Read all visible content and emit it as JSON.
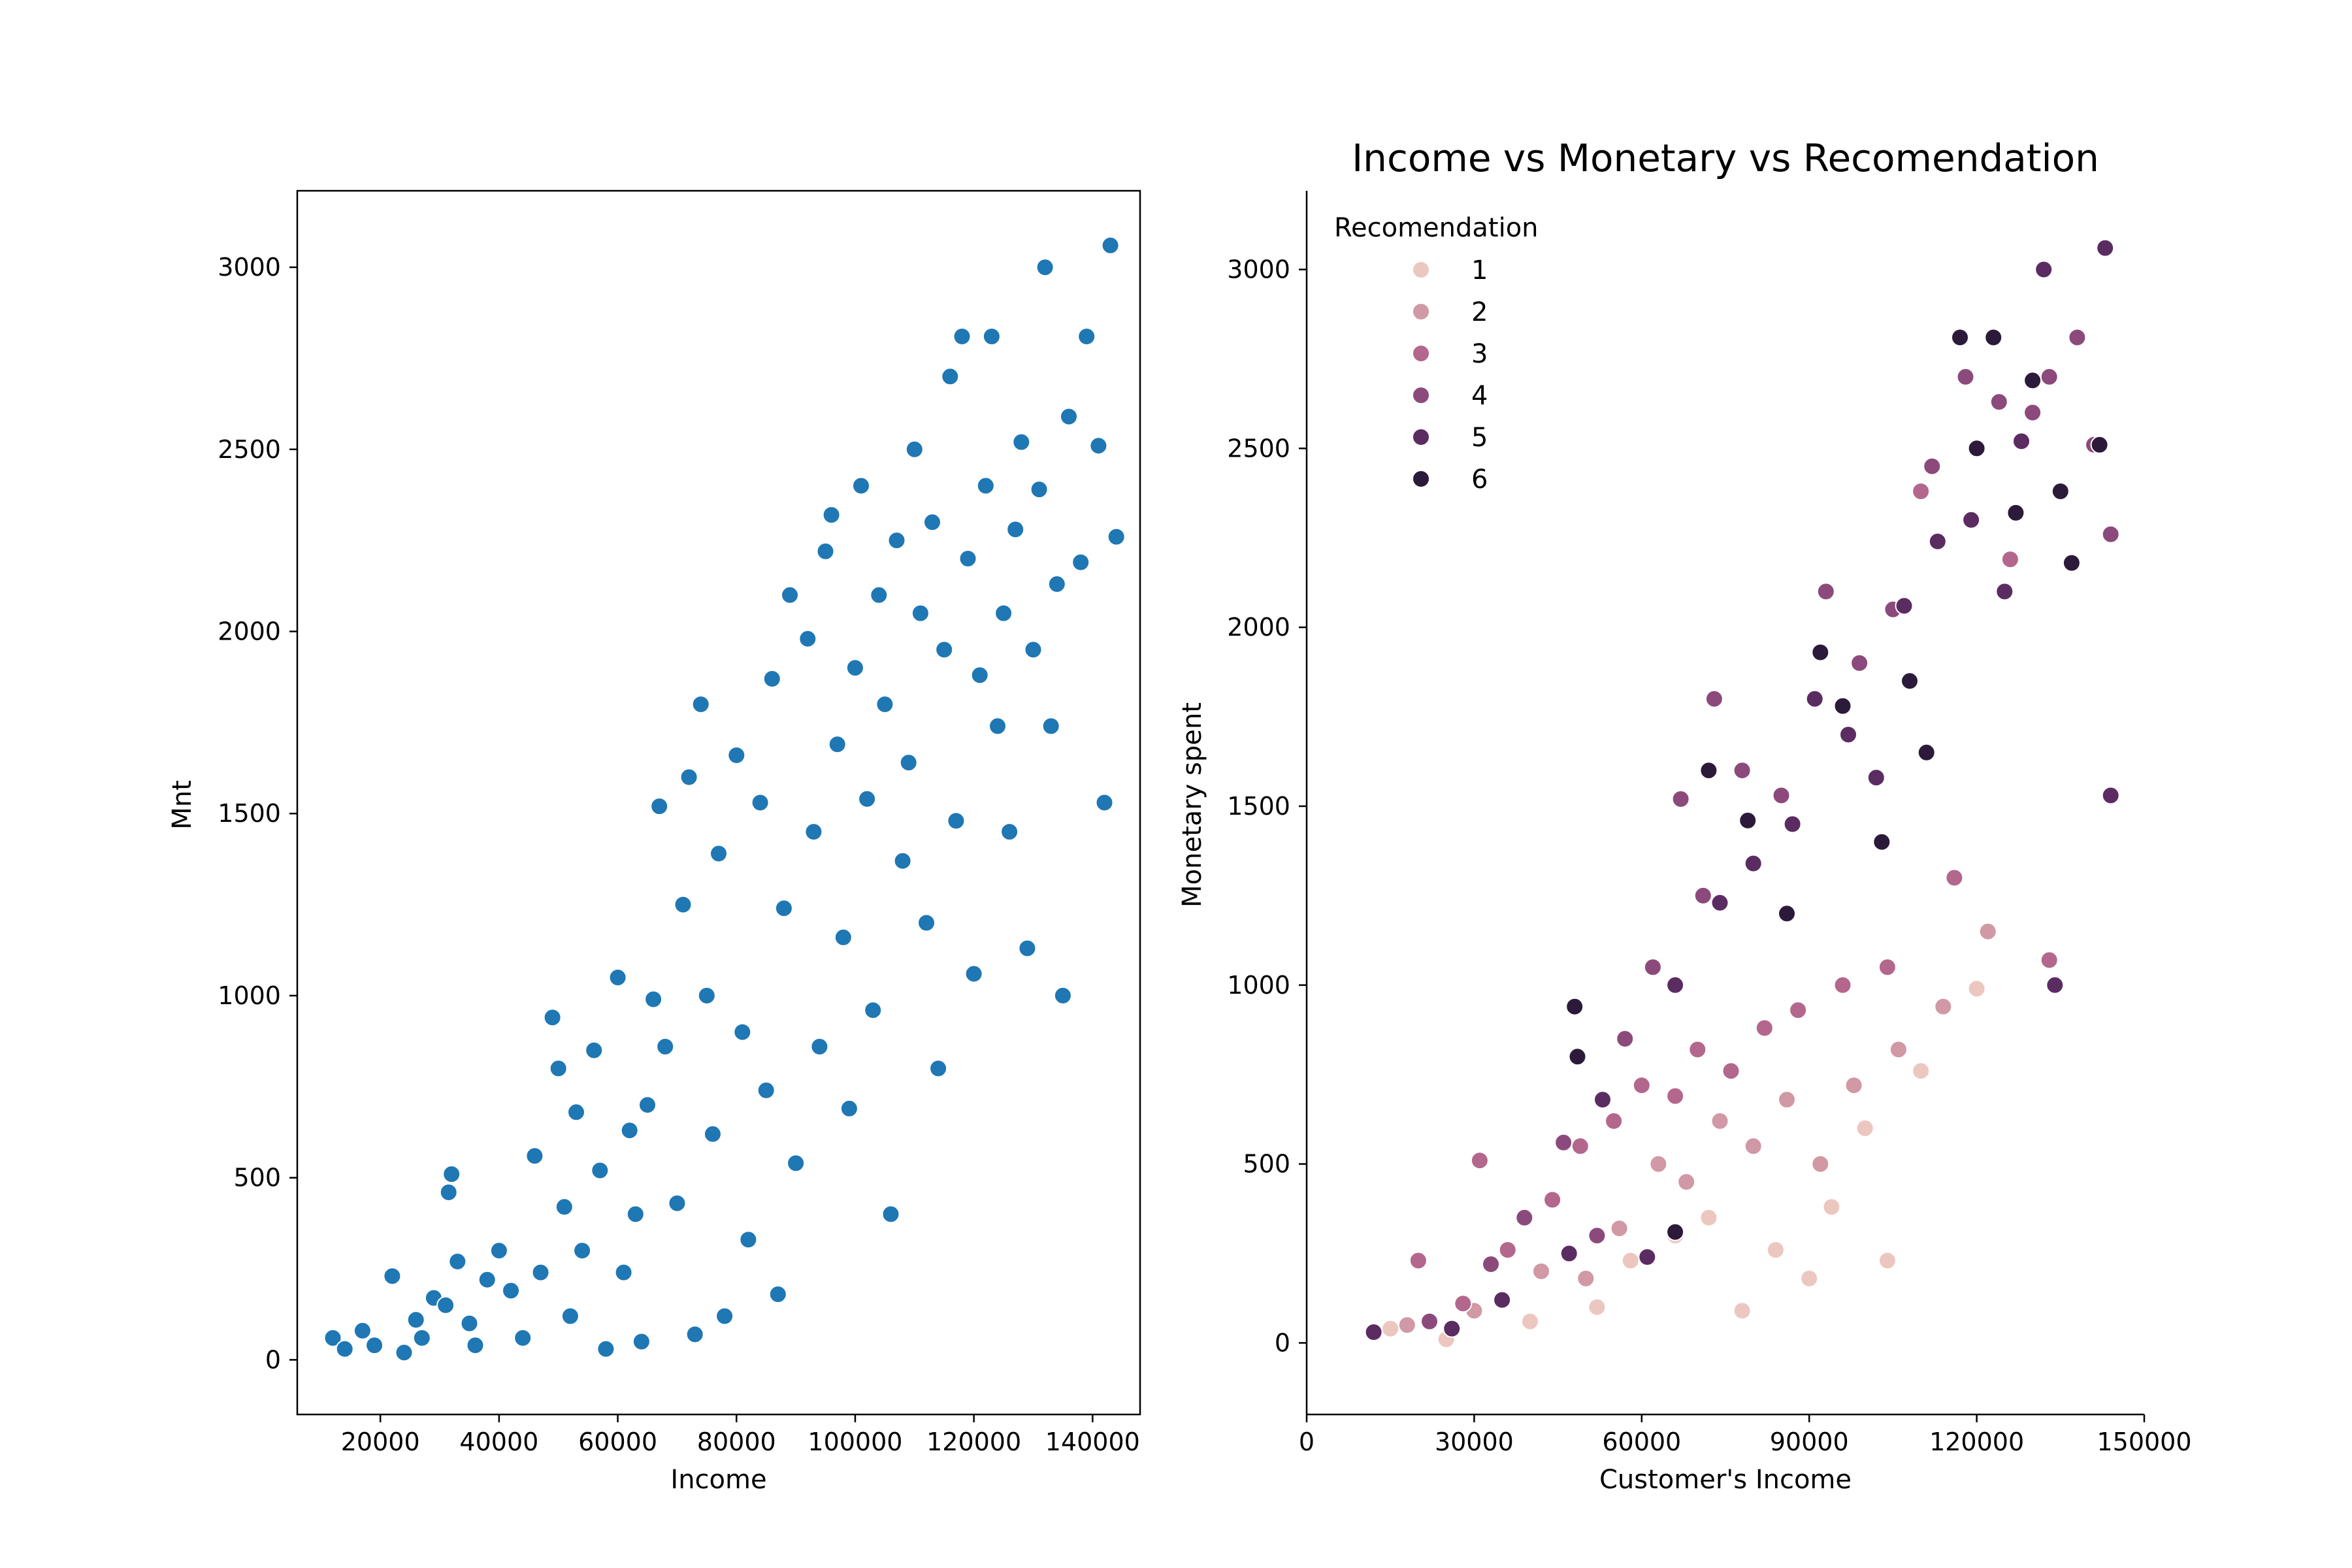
{
  "chart_data": [
    {
      "type": "scatter",
      "title": "",
      "xlabel": "Income",
      "ylabel": "Mnt",
      "xlim": [
        6000,
        148000
      ],
      "ylim": [
        -150,
        3210
      ],
      "xticks": [
        20000,
        40000,
        60000,
        80000,
        100000,
        120000,
        140000
      ],
      "yticks": [
        0,
        500,
        1000,
        1500,
        2000,
        2500,
        3000
      ],
      "grid": false,
      "color": "#1f77b4",
      "series": [
        {
          "points": [
            [
              12000,
              60
            ],
            [
              14000,
              30
            ],
            [
              17000,
              80
            ],
            [
              19000,
              40
            ],
            [
              22000,
              230
            ],
            [
              24000,
              20
            ],
            [
              26000,
              110
            ],
            [
              27000,
              60
            ],
            [
              29000,
              170
            ],
            [
              31000,
              150
            ],
            [
              32000,
              510
            ],
            [
              31500,
              460
            ],
            [
              33000,
              270
            ],
            [
              35000,
              100
            ],
            [
              36000,
              40
            ],
            [
              38000,
              220
            ],
            [
              40000,
              300
            ],
            [
              42000,
              190
            ],
            [
              44000,
              60
            ],
            [
              46000,
              560
            ],
            [
              47000,
              240
            ],
            [
              49000,
              940
            ],
            [
              50000,
              800
            ],
            [
              51000,
              420
            ],
            [
              52000,
              120
            ],
            [
              53000,
              680
            ],
            [
              54000,
              300
            ],
            [
              56000,
              850
            ],
            [
              57000,
              520
            ],
            [
              58000,
              30
            ],
            [
              60000,
              1050
            ],
            [
              61000,
              240
            ],
            [
              62000,
              630
            ],
            [
              63000,
              400
            ],
            [
              64000,
              50
            ],
            [
              65000,
              700
            ],
            [
              66000,
              990
            ],
            [
              67000,
              1520
            ],
            [
              68000,
              860
            ],
            [
              70000,
              430
            ],
            [
              71000,
              1250
            ],
            [
              72000,
              1600
            ],
            [
              73000,
              70
            ],
            [
              74000,
              1800
            ],
            [
              75000,
              1000
            ],
            [
              76000,
              620
            ],
            [
              77000,
              1390
            ],
            [
              78000,
              120
            ],
            [
              80000,
              1660
            ],
            [
              81000,
              900
            ],
            [
              82000,
              330
            ],
            [
              84000,
              1530
            ],
            [
              85000,
              740
            ],
            [
              86000,
              1870
            ],
            [
              87000,
              180
            ],
            [
              88000,
              1240
            ],
            [
              89000,
              2100
            ],
            [
              90000,
              540
            ],
            [
              92000,
              1980
            ],
            [
              93000,
              1450
            ],
            [
              94000,
              860
            ],
            [
              95000,
              2220
            ],
            [
              96000,
              2320
            ],
            [
              97000,
              1690
            ],
            [
              98000,
              1160
            ],
            [
              99000,
              690
            ],
            [
              100000,
              1900
            ],
            [
              101000,
              2400
            ],
            [
              102000,
              1540
            ],
            [
              103000,
              960
            ],
            [
              104000,
              2100
            ],
            [
              105000,
              1800
            ],
            [
              106000,
              400
            ],
            [
              107000,
              2250
            ],
            [
              108000,
              1370
            ],
            [
              109000,
              1640
            ],
            [
              110000,
              2500
            ],
            [
              111000,
              2050
            ],
            [
              112000,
              1200
            ],
            [
              113000,
              2300
            ],
            [
              114000,
              800
            ],
            [
              115000,
              1950
            ],
            [
              116000,
              2700
            ],
            [
              117000,
              1480
            ],
            [
              118000,
              2810
            ],
            [
              119000,
              2200
            ],
            [
              120000,
              1060
            ],
            [
              121000,
              1880
            ],
            [
              122000,
              2400
            ],
            [
              123000,
              2810
            ],
            [
              124000,
              1740
            ],
            [
              125000,
              2050
            ],
            [
              126000,
              1450
            ],
            [
              127000,
              2280
            ],
            [
              128000,
              2520
            ],
            [
              129000,
              1130
            ],
            [
              130000,
              1950
            ],
            [
              131000,
              2390
            ],
            [
              132000,
              3000
            ],
            [
              133000,
              1740
            ],
            [
              134000,
              2130
            ],
            [
              135000,
              1000
            ],
            [
              136000,
              2590
            ],
            [
              138000,
              2190
            ],
            [
              139000,
              2810
            ],
            [
              141000,
              2510
            ],
            [
              142000,
              1530
            ],
            [
              143000,
              3060
            ],
            [
              144000,
              2260
            ]
          ]
        }
      ]
    },
    {
      "type": "scatter",
      "title": "Income vs Monetary vs Recomendation",
      "xlabel": "Customer's Income",
      "ylabel": "Monetary spent",
      "xlim": [
        0,
        150000
      ],
      "ylim": [
        -200,
        3220
      ],
      "xticks": [
        0,
        30000,
        60000,
        90000,
        120000,
        150000
      ],
      "yticks": [
        0,
        500,
        1000,
        1500,
        2000,
        2500,
        3000
      ],
      "grid": false,
      "legend": {
        "title": "Recomendation",
        "position": "top-left",
        "entries": [
          {
            "label": "1",
            "color": "#ecc7c0"
          },
          {
            "label": "2",
            "color": "#d198a5"
          },
          {
            "label": "3",
            "color": "#b4678d"
          },
          {
            "label": "4",
            "color": "#8c4a7c"
          },
          {
            "label": "5",
            "color": "#5b2c62"
          },
          {
            "label": "6",
            "color": "#2c1a3a"
          }
        ]
      },
      "series": [
        {
          "name": "1",
          "points": [
            [
              15000,
              40
            ],
            [
              25000,
              10
            ],
            [
              40000,
              60
            ],
            [
              52000,
              100
            ],
            [
              58000,
              230
            ],
            [
              66000,
              300
            ],
            [
              72000,
              350
            ],
            [
              78000,
              90
            ],
            [
              84000,
              260
            ],
            [
              90000,
              180
            ],
            [
              94000,
              380
            ],
            [
              100000,
              600
            ],
            [
              104000,
              230
            ],
            [
              110000,
              760
            ],
            [
              120000,
              990
            ]
          ]
        },
        {
          "name": "2",
          "points": [
            [
              18000,
              50
            ],
            [
              30000,
              90
            ],
            [
              42000,
              200
            ],
            [
              50000,
              180
            ],
            [
              56000,
              320
            ],
            [
              63000,
              500
            ],
            [
              68000,
              450
            ],
            [
              74000,
              620
            ],
            [
              80000,
              550
            ],
            [
              86000,
              680
            ],
            [
              92000,
              500
            ],
            [
              98000,
              720
            ],
            [
              106000,
              820
            ],
            [
              114000,
              940
            ],
            [
              122000,
              1150
            ]
          ]
        },
        {
          "name": "3",
          "points": [
            [
              20000,
              230
            ],
            [
              28000,
              110
            ],
            [
              31000,
              510
            ],
            [
              36000,
              260
            ],
            [
              44000,
              400
            ],
            [
              49000,
              550
            ],
            [
              55000,
              620
            ],
            [
              60000,
              720
            ],
            [
              66000,
              690
            ],
            [
              70000,
              820
            ],
            [
              76000,
              760
            ],
            [
              82000,
              880
            ],
            [
              88000,
              930
            ],
            [
              96000,
              1000
            ],
            [
              104000,
              1050
            ],
            [
              110000,
              2380
            ],
            [
              116000,
              1300
            ],
            [
              126000,
              2190
            ],
            [
              133000,
              1070
            ]
          ]
        },
        {
          "name": "4",
          "points": [
            [
              22000,
              60
            ],
            [
              33000,
              220
            ],
            [
              39000,
              350
            ],
            [
              46000,
              560
            ],
            [
              52000,
              300
            ],
            [
              57000,
              850
            ],
            [
              62000,
              1050
            ],
            [
              67000,
              1520
            ],
            [
              71000,
              1250
            ],
            [
              73000,
              1800
            ],
            [
              78000,
              1600
            ],
            [
              85000,
              1530
            ],
            [
              93000,
              2100
            ],
            [
              99000,
              1900
            ],
            [
              105000,
              2050
            ],
            [
              112000,
              2450
            ],
            [
              118000,
              2700
            ],
            [
              124000,
              2630
            ],
            [
              130000,
              2600
            ],
            [
              133000,
              2700
            ],
            [
              138000,
              2810
            ],
            [
              141000,
              2510
            ],
            [
              144000,
              2260
            ]
          ]
        },
        {
          "name": "5",
          "points": [
            [
              12000,
              30
            ],
            [
              26000,
              40
            ],
            [
              35000,
              120
            ],
            [
              47000,
              250
            ],
            [
              53000,
              680
            ],
            [
              61000,
              240
            ],
            [
              66000,
              1000
            ],
            [
              74000,
              1230
            ],
            [
              80000,
              1340
            ],
            [
              87000,
              1450
            ],
            [
              91000,
              1800
            ],
            [
              97000,
              1700
            ],
            [
              102000,
              1580
            ],
            [
              107000,
              2060
            ],
            [
              113000,
              2240
            ],
            [
              119000,
              2300
            ],
            [
              125000,
              2100
            ],
            [
              128000,
              2520
            ],
            [
              132000,
              3000
            ],
            [
              134000,
              1000
            ],
            [
              143000,
              3060
            ],
            [
              144000,
              1530
            ]
          ]
        },
        {
          "name": "6",
          "points": [
            [
              48000,
              940
            ],
            [
              48500,
              800
            ],
            [
              66000,
              310
            ],
            [
              72000,
              1600
            ],
            [
              79000,
              1460
            ],
            [
              86000,
              1200
            ],
            [
              92000,
              1930
            ],
            [
              96000,
              1780
            ],
            [
              103000,
              1400
            ],
            [
              108000,
              1850
            ],
            [
              111000,
              1650
            ],
            [
              117000,
              2810
            ],
            [
              120000,
              2500
            ],
            [
              123000,
              2810
            ],
            [
              127000,
              2320
            ],
            [
              130000,
              2690
            ],
            [
              135000,
              2380
            ],
            [
              137000,
              2180
            ],
            [
              142000,
              2510
            ]
          ]
        }
      ]
    }
  ]
}
